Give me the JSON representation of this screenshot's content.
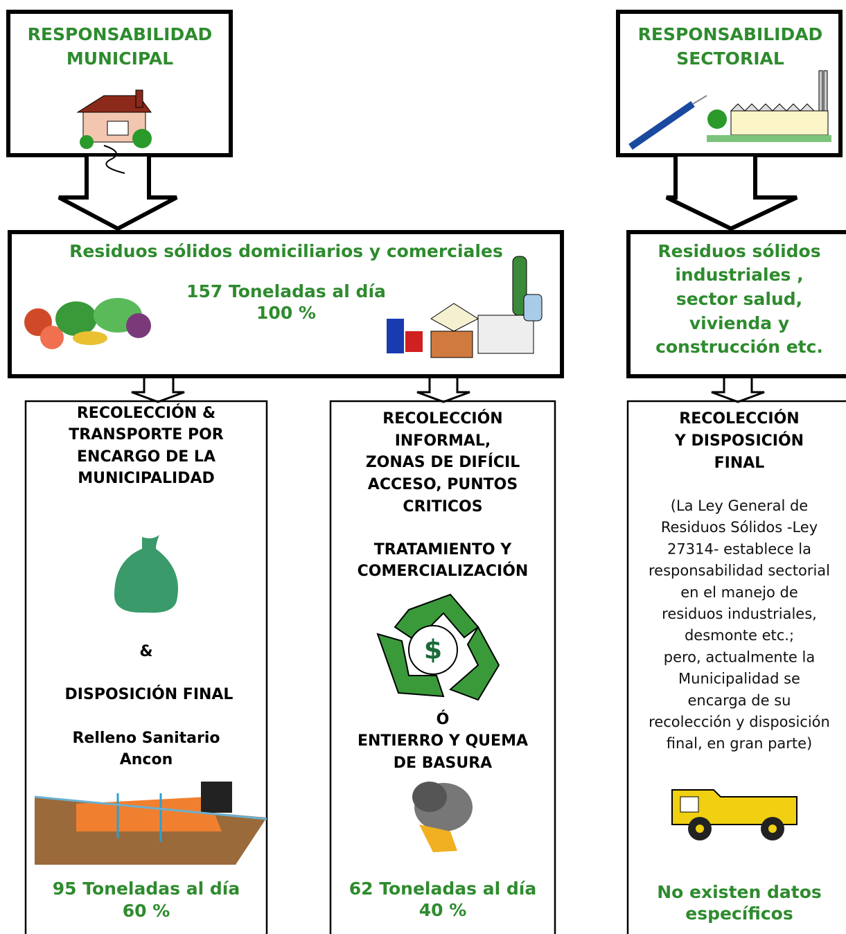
{
  "municipal": {
    "title": [
      "RESPONSABILIDAD",
      "MUNICIPAL"
    ]
  },
  "sectoral": {
    "title": [
      "RESPONSABILIDAD",
      "SECTORIAL"
    ]
  },
  "domestic": {
    "title": "Residuos sólidos domiciliarios y comerciales",
    "amount": "157 Toneladas al día",
    "percent": "100 %"
  },
  "industrial": {
    "title": [
      "Residuos sólidos",
      "industriales ,",
      "sector salud,",
      "vivienda y",
      "construcción etc."
    ]
  },
  "collection": {
    "heading": [
      "RECOLECCIÓN &",
      "TRANSPORTE POR",
      "ENCARGO DE LA",
      "MUNICIPALIDAD"
    ],
    "and": "&",
    "disposal": "DISPOSICIÓN FINAL",
    "site": [
      "Relleno Sanitario",
      "Ancon"
    ],
    "amount": "95 Toneladas al día",
    "percent": "60 %"
  },
  "informal": {
    "heading": [
      "RECOLECCIÓN",
      "INFORMAL,",
      "ZONAS DE DIFÍCIL",
      "ACCESO, PUNTOS",
      "CRITICOS"
    ],
    "treatment": [
      "TRATAMIENTO Y",
      "COMERCIALIZACIÓN"
    ],
    "or": "Ó",
    "burial": [
      "ENTIERRO Y QUEMA",
      "DE BASURA"
    ],
    "amount": "62 Toneladas al día",
    "percent": "40 %"
  },
  "sector_collection": {
    "heading": [
      "RECOLECCIÓN",
      "Y DISPOSICIÓN",
      "FINAL"
    ],
    "note": [
      "(La Ley General de",
      "Residuos Sólidos -Ley",
      "27314- establece la",
      "responsabilidad sectorial",
      "en el manejo de",
      "residuos industriales,",
      "desmonte etc.;",
      "pero, actualmente la",
      "Municipalidad se",
      "encarga de su",
      "recolección y disposición",
      "final, en gran parte)"
    ],
    "footer": [
      "No existen datos",
      "específicos"
    ]
  }
}
